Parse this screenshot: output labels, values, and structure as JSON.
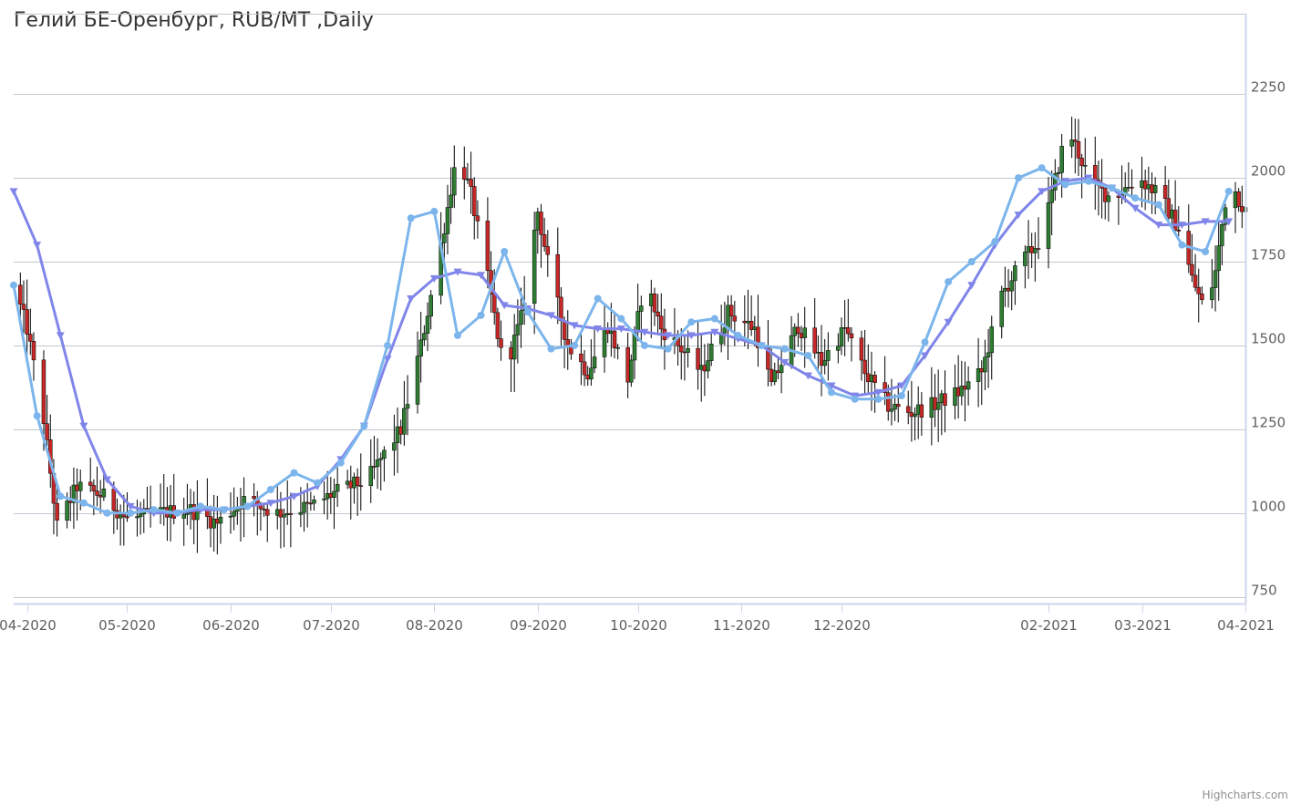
{
  "chart_data": {
    "type": "candlestick",
    "title": "Гелий БЕ-Оренбург, RUB/MT ,Daily",
    "xlabel": "",
    "ylabel": "",
    "y_axis_position": "right",
    "ylim": [
      730,
      2490
    ],
    "y_ticks": [
      750,
      1000,
      1250,
      1500,
      1750,
      2000,
      2250
    ],
    "x_ticks": [
      "04-2020",
      "05-2020",
      "06-2020",
      "07-2020",
      "08-2020",
      "09-2020",
      "10-2020",
      "11-2020",
      "12-2020",
      "02-2021",
      "03-2021",
      "04-2021"
    ],
    "x_tick_dates": [
      "2020-04-01",
      "2020-05-01",
      "2020-06-01",
      "2020-07-01",
      "2020-08-01",
      "2020-09-01",
      "2020-10-01",
      "2020-11-01",
      "2020-12-01",
      "2021-02-01",
      "2021-03-01",
      "2021-04-01"
    ],
    "xlim": [
      "2020-03-28",
      "2021-04-01"
    ],
    "grid": true,
    "legend": "none",
    "colors": {
      "up": "#2f7d32",
      "down": "#c62828",
      "wick": "#000000",
      "grid": "#c0c8d0",
      "sma_fast": "#7cb5ec",
      "sma_slow": "#8085e9"
    },
    "candle_close_anchors": [
      [
        "2020-03-28",
        1680
      ],
      [
        "2020-04-01",
        1550
      ],
      [
        "2020-04-06",
        1280
      ],
      [
        "2020-04-10",
        960
      ],
      [
        "2020-04-16",
        1080
      ],
      [
        "2020-04-24",
        1050
      ],
      [
        "2020-05-01",
        980
      ],
      [
        "2020-05-10",
        1000
      ],
      [
        "2020-05-20",
        1010
      ],
      [
        "2020-05-28",
        970
      ],
      [
        "2020-06-05",
        1040
      ],
      [
        "2020-06-15",
        1000
      ],
      [
        "2020-06-25",
        1020
      ],
      [
        "2020-07-02",
        1060
      ],
      [
        "2020-07-12",
        1100
      ],
      [
        "2020-07-22",
        1250
      ],
      [
        "2020-07-28",
        1500
      ],
      [
        "2020-08-03",
        1800
      ],
      [
        "2020-08-08",
        2080
      ],
      [
        "2020-08-12",
        1950
      ],
      [
        "2020-08-17",
        1700
      ],
      [
        "2020-08-22",
        1420
      ],
      [
        "2020-08-27",
        1580
      ],
      [
        "2020-09-01",
        1900
      ],
      [
        "2020-09-05",
        1700
      ],
      [
        "2020-09-10",
        1500
      ],
      [
        "2020-09-16",
        1420
      ],
      [
        "2020-09-22",
        1560
      ],
      [
        "2020-09-28",
        1400
      ],
      [
        "2020-10-03",
        1700
      ],
      [
        "2020-10-08",
        1550
      ],
      [
        "2020-10-15",
        1480
      ],
      [
        "2020-10-20",
        1420
      ],
      [
        "2020-10-28",
        1600
      ],
      [
        "2020-11-05",
        1550
      ],
      [
        "2020-11-10",
        1380
      ],
      [
        "2020-11-18",
        1560
      ],
      [
        "2020-11-25",
        1450
      ],
      [
        "2020-12-02",
        1550
      ],
      [
        "2020-12-08",
        1420
      ],
      [
        "2020-12-15",
        1320
      ],
      [
        "2020-12-22",
        1300
      ],
      [
        "2020-12-28",
        1320
      ],
      [
        "2021-01-05",
        1360
      ],
      [
        "2021-01-12",
        1420
      ],
      [
        "2021-01-18",
        1650
      ],
      [
        "2021-01-24",
        1750
      ],
      [
        "2021-01-30",
        1820
      ],
      [
        "2021-02-05",
        2080
      ],
      [
        "2021-02-08",
        2120
      ],
      [
        "2021-02-14",
        1980
      ],
      [
        "2021-02-20",
        1940
      ],
      [
        "2021-02-28",
        2000
      ],
      [
        "2021-03-06",
        1950
      ],
      [
        "2021-03-12",
        1850
      ],
      [
        "2021-03-16",
        1700
      ],
      [
        "2021-03-20",
        1600
      ],
      [
        "2021-03-23",
        1720
      ],
      [
        "2021-03-27",
        2000
      ],
      [
        "2021-04-01",
        1900
      ]
    ],
    "series": [
      {
        "type": "line",
        "marker": "circle",
        "x": [
          "2020-03-28",
          "2020-04-04",
          "2020-04-11",
          "2020-04-18",
          "2020-04-25",
          "2020-05-02",
          "2020-05-09",
          "2020-05-16",
          "2020-05-23",
          "2020-05-30",
          "2020-06-06",
          "2020-06-13",
          "2020-06-20",
          "2020-06-27",
          "2020-07-04",
          "2020-07-11",
          "2020-07-18",
          "2020-07-25",
          "2020-08-01",
          "2020-08-08",
          "2020-08-15",
          "2020-08-22",
          "2020-08-29",
          "2020-09-05",
          "2020-09-12",
          "2020-09-19",
          "2020-09-26",
          "2020-10-03",
          "2020-10-10",
          "2020-10-17",
          "2020-10-24",
          "2020-10-31",
          "2020-11-07",
          "2020-11-14",
          "2020-11-21",
          "2020-11-28",
          "2020-12-05",
          "2020-12-12",
          "2020-12-19",
          "2020-12-26",
          "2021-01-02",
          "2021-01-09",
          "2021-01-16",
          "2021-01-23",
          "2021-01-30",
          "2021-02-06",
          "2021-02-13",
          "2021-02-20",
          "2021-02-27",
          "2021-03-06",
          "2021-03-13",
          "2021-03-20",
          "2021-03-27"
        ],
        "values": [
          1680,
          1290,
          1050,
          1030,
          1000,
          1000,
          1010,
          1000,
          1020,
          1010,
          1020,
          1070,
          1120,
          1090,
          1150,
          1260,
          1500,
          1880,
          1900,
          1530,
          1590,
          1780,
          1600,
          1490,
          1500,
          1640,
          1580,
          1500,
          1490,
          1570,
          1580,
          1530,
          1500,
          1490,
          1470,
          1360,
          1340,
          1340,
          1350,
          1510,
          1690,
          1750,
          1810,
          2000,
          2030,
          1980,
          1990,
          1970,
          1940,
          1920,
          1800,
          1780,
          1960
        ]
      },
      {
        "type": "line",
        "marker": "triangle-down",
        "x": [
          "2020-03-28",
          "2020-04-04",
          "2020-04-11",
          "2020-04-18",
          "2020-04-25",
          "2020-05-02",
          "2020-05-09",
          "2020-05-16",
          "2020-05-23",
          "2020-05-30",
          "2020-06-06",
          "2020-06-13",
          "2020-06-20",
          "2020-06-27",
          "2020-07-04",
          "2020-07-11",
          "2020-07-18",
          "2020-07-25",
          "2020-08-01",
          "2020-08-08",
          "2020-08-15",
          "2020-08-22",
          "2020-08-29",
          "2020-09-05",
          "2020-09-12",
          "2020-09-19",
          "2020-09-26",
          "2020-10-03",
          "2020-10-10",
          "2020-10-17",
          "2020-10-24",
          "2020-10-31",
          "2020-11-07",
          "2020-11-14",
          "2020-11-21",
          "2020-11-28",
          "2020-12-05",
          "2020-12-12",
          "2020-12-19",
          "2020-12-26",
          "2021-01-02",
          "2021-01-09",
          "2021-01-16",
          "2021-01-23",
          "2021-01-30",
          "2021-02-06",
          "2021-02-13",
          "2021-02-20",
          "2021-02-27",
          "2021-03-06",
          "2021-03-13",
          "2021-03-20",
          "2021-03-27"
        ],
        "values": [
          1960,
          1800,
          1530,
          1260,
          1100,
          1020,
          1000,
          1000,
          1010,
          1010,
          1020,
          1030,
          1050,
          1080,
          1160,
          1260,
          1460,
          1640,
          1700,
          1720,
          1710,
          1620,
          1610,
          1590,
          1560,
          1550,
          1550,
          1540,
          1530,
          1530,
          1540,
          1520,
          1500,
          1450,
          1410,
          1380,
          1350,
          1360,
          1380,
          1470,
          1570,
          1680,
          1800,
          1890,
          1960,
          1990,
          2000,
          1970,
          1910,
          1860,
          1860,
          1870,
          1870
        ]
      }
    ]
  },
  "credits": "Highcharts.com"
}
